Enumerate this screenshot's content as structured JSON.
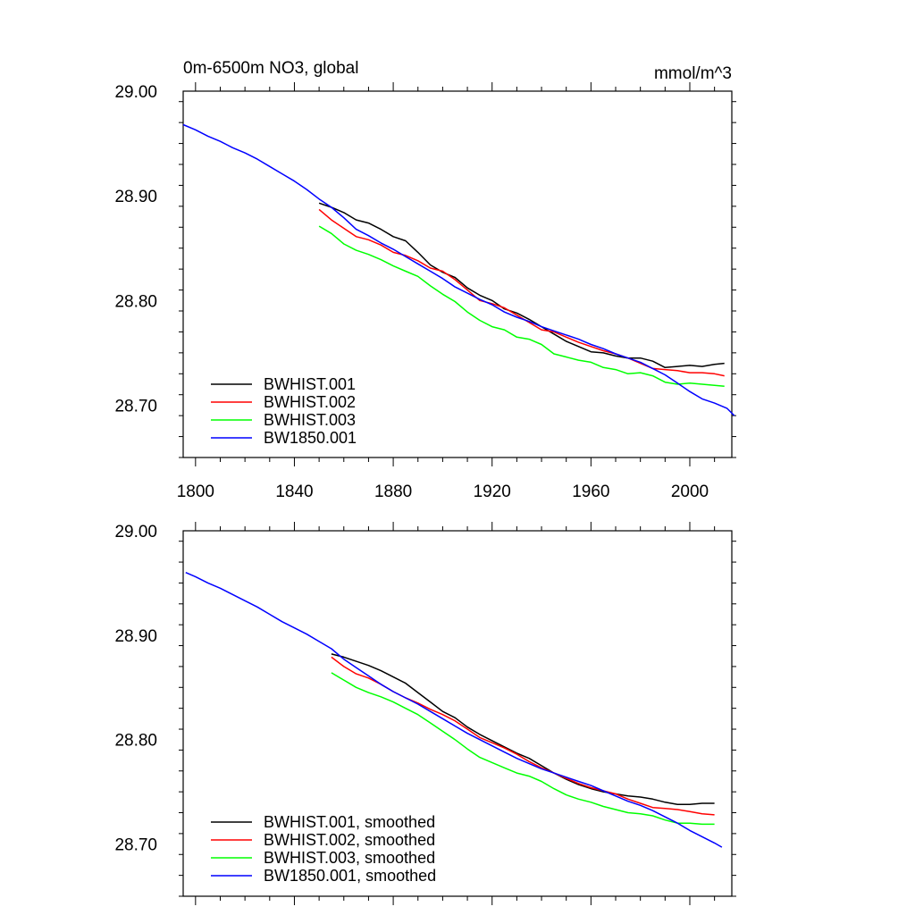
{
  "chart_data": [
    {
      "type": "line",
      "title": "0m-6500m NO3, global",
      "units": "mmol/m^3",
      "xlim": [
        1795,
        2017
      ],
      "ylim": [
        28.65,
        29.0
      ],
      "xticks": [
        1800,
        1840,
        1880,
        1920,
        1960,
        2000
      ],
      "xtick_labels": [
        "1800",
        "1840",
        "1880",
        "1920",
        "1960",
        "2000"
      ],
      "yticks": [
        28.7,
        28.8,
        28.9,
        29.0
      ],
      "ytick_labels": [
        "28.70",
        "28.80",
        "28.90",
        "29.00"
      ],
      "legend_position": "bottom-left",
      "series": [
        {
          "name": "BWHIST.001",
          "color": "#000000",
          "x": [
            1850,
            1855,
            1860,
            1865,
            1870,
            1875,
            1880,
            1885,
            1890,
            1895,
            1900,
            1905,
            1910,
            1915,
            1920,
            1925,
            1930,
            1935,
            1940,
            1945,
            1950,
            1955,
            1960,
            1965,
            1970,
            1975,
            1980,
            1985,
            1990,
            1995,
            2000,
            2005,
            2010,
            2014
          ],
          "y": [
            28.893,
            28.889,
            28.884,
            28.877,
            28.874,
            28.868,
            28.861,
            28.857,
            28.846,
            28.834,
            28.827,
            28.822,
            28.812,
            28.805,
            28.8,
            28.792,
            28.788,
            28.782,
            28.775,
            28.768,
            28.761,
            28.756,
            28.751,
            28.75,
            28.747,
            28.745,
            28.745,
            28.742,
            28.736,
            28.737,
            28.738,
            28.737,
            28.739,
            28.74
          ]
        },
        {
          "name": "BWHIST.002",
          "color": "#ff0000",
          "x": [
            1850,
            1855,
            1860,
            1865,
            1870,
            1875,
            1880,
            1885,
            1890,
            1895,
            1900,
            1905,
            1910,
            1915,
            1920,
            1925,
            1930,
            1935,
            1940,
            1945,
            1950,
            1955,
            1960,
            1965,
            1970,
            1975,
            1980,
            1985,
            1990,
            1995,
            2000,
            2005,
            2010,
            2014
          ],
          "y": [
            28.887,
            28.877,
            28.869,
            28.861,
            28.858,
            28.853,
            28.846,
            28.843,
            28.838,
            28.831,
            28.828,
            28.82,
            28.81,
            28.8,
            28.797,
            28.793,
            28.786,
            28.779,
            28.772,
            28.77,
            28.765,
            28.76,
            28.756,
            28.752,
            28.749,
            28.745,
            28.74,
            28.735,
            28.734,
            28.733,
            28.731,
            28.731,
            28.73,
            28.728
          ]
        },
        {
          "name": "BWHIST.003",
          "color": "#00ff00",
          "x": [
            1850,
            1855,
            1860,
            1865,
            1870,
            1875,
            1880,
            1885,
            1890,
            1895,
            1900,
            1905,
            1910,
            1915,
            1920,
            1925,
            1930,
            1935,
            1940,
            1945,
            1950,
            1955,
            1960,
            1965,
            1970,
            1975,
            1980,
            1985,
            1990,
            1995,
            2000,
            2005,
            2010,
            2014
          ],
          "y": [
            28.871,
            28.864,
            28.854,
            28.848,
            28.844,
            28.839,
            28.833,
            28.828,
            28.823,
            28.814,
            28.806,
            28.799,
            28.789,
            28.781,
            28.775,
            28.772,
            28.765,
            28.763,
            28.758,
            28.749,
            28.746,
            28.743,
            28.741,
            28.736,
            28.734,
            28.73,
            28.731,
            28.728,
            28.722,
            28.72,
            28.721,
            28.72,
            28.719,
            28.718
          ]
        },
        {
          "name": "BW1850.001",
          "color": "#0000ff",
          "x": [
            1795,
            1800,
            1805,
            1810,
            1815,
            1820,
            1825,
            1830,
            1835,
            1840,
            1845,
            1850,
            1855,
            1860,
            1865,
            1870,
            1875,
            1880,
            1885,
            1890,
            1895,
            1900,
            1905,
            1910,
            1915,
            1920,
            1925,
            1930,
            1935,
            1940,
            1945,
            1950,
            1955,
            1960,
            1965,
            1970,
            1975,
            1980,
            1985,
            1990,
            1995,
            2000,
            2005,
            2010,
            2015,
            2018
          ],
          "y": [
            28.968,
            28.963,
            28.957,
            28.952,
            28.946,
            28.941,
            28.935,
            28.928,
            28.921,
            28.914,
            28.906,
            28.897,
            28.889,
            28.879,
            28.868,
            28.862,
            28.855,
            28.849,
            28.842,
            28.835,
            28.828,
            28.821,
            28.813,
            28.807,
            28.801,
            28.796,
            28.789,
            28.784,
            28.78,
            28.775,
            28.771,
            28.767,
            28.763,
            28.758,
            28.754,
            28.749,
            28.745,
            28.741,
            28.735,
            28.729,
            28.721,
            28.713,
            28.706,
            28.702,
            28.697,
            28.69
          ]
        }
      ]
    },
    {
      "type": "line",
      "xlim": [
        1795,
        2017
      ],
      "ylim": [
        28.65,
        29.0
      ],
      "xticks": [
        1800,
        1840,
        1880,
        1920,
        1960,
        2000
      ],
      "yticks": [
        28.7,
        28.8,
        28.9,
        29.0
      ],
      "ytick_labels": [
        "28.70",
        "28.80",
        "28.90",
        "29.00"
      ],
      "legend_position": "bottom-left",
      "series": [
        {
          "name": "BWHIST.001, smoothed",
          "color": "#000000",
          "x": [
            1855,
            1860,
            1865,
            1870,
            1875,
            1880,
            1885,
            1890,
            1895,
            1900,
            1905,
            1910,
            1915,
            1920,
            1925,
            1930,
            1935,
            1940,
            1945,
            1950,
            1955,
            1960,
            1965,
            1970,
            1975,
            1980,
            1985,
            1990,
            1995,
            2000,
            2005,
            2010
          ],
          "y": [
            28.882,
            28.879,
            28.875,
            28.871,
            28.866,
            28.86,
            28.854,
            28.845,
            28.836,
            28.827,
            28.821,
            28.812,
            28.805,
            28.799,
            28.793,
            28.787,
            28.782,
            28.775,
            28.768,
            28.762,
            28.757,
            28.753,
            28.75,
            28.748,
            28.746,
            28.745,
            28.743,
            28.74,
            28.738,
            28.738,
            28.739,
            28.739
          ]
        },
        {
          "name": "BWHIST.002, smoothed",
          "color": "#ff0000",
          "x": [
            1855,
            1860,
            1865,
            1870,
            1875,
            1880,
            1885,
            1890,
            1895,
            1900,
            1905,
            1910,
            1915,
            1920,
            1925,
            1930,
            1935,
            1940,
            1945,
            1950,
            1955,
            1960,
            1965,
            1970,
            1975,
            1980,
            1985,
            1990,
            1995,
            2000,
            2005,
            2010
          ],
          "y": [
            28.879,
            28.87,
            28.863,
            28.859,
            28.853,
            28.846,
            28.84,
            28.835,
            28.829,
            28.824,
            28.818,
            28.81,
            28.802,
            28.797,
            28.792,
            28.786,
            28.779,
            28.773,
            28.768,
            28.763,
            28.758,
            28.754,
            28.751,
            28.748,
            28.743,
            28.739,
            28.735,
            28.734,
            28.733,
            28.731,
            28.729,
            28.728
          ]
        },
        {
          "name": "BWHIST.003, smoothed",
          "color": "#00ff00",
          "x": [
            1855,
            1860,
            1865,
            1870,
            1875,
            1880,
            1885,
            1890,
            1895,
            1900,
            1905,
            1910,
            1915,
            1920,
            1925,
            1930,
            1935,
            1940,
            1945,
            1950,
            1955,
            1960,
            1965,
            1970,
            1975,
            1980,
            1985,
            1990,
            1995,
            2000,
            2005,
            2010
          ],
          "y": [
            28.864,
            28.857,
            28.85,
            28.845,
            28.841,
            28.836,
            28.83,
            28.824,
            28.816,
            28.808,
            28.8,
            28.791,
            28.783,
            28.778,
            28.773,
            28.768,
            28.765,
            28.76,
            28.753,
            28.747,
            28.743,
            28.74,
            28.736,
            28.733,
            28.73,
            28.729,
            28.727,
            28.723,
            28.72,
            28.72,
            28.719,
            28.719
          ]
        },
        {
          "name": "BW1850.001, smoothed",
          "color": "#0000ff",
          "x": [
            1796,
            1800,
            1805,
            1810,
            1815,
            1820,
            1825,
            1830,
            1835,
            1840,
            1845,
            1850,
            1855,
            1860,
            1865,
            1870,
            1875,
            1880,
            1885,
            1890,
            1895,
            1900,
            1905,
            1910,
            1915,
            1920,
            1925,
            1930,
            1935,
            1940,
            1945,
            1950,
            1955,
            1960,
            1965,
            1970,
            1975,
            1980,
            1985,
            1990,
            1995,
            2000,
            2005,
            2010,
            2013
          ],
          "y": [
            28.96,
            28.956,
            28.95,
            28.945,
            28.939,
            28.933,
            28.927,
            28.92,
            28.913,
            28.907,
            28.901,
            28.894,
            28.887,
            28.877,
            28.869,
            28.861,
            28.853,
            28.846,
            28.84,
            28.834,
            28.827,
            28.82,
            28.813,
            28.806,
            28.8,
            28.794,
            28.788,
            28.782,
            28.777,
            28.772,
            28.768,
            28.764,
            28.76,
            28.756,
            28.751,
            28.746,
            28.741,
            28.737,
            28.732,
            28.726,
            28.72,
            28.713,
            28.707,
            28.701,
            28.697
          ]
        }
      ]
    }
  ]
}
